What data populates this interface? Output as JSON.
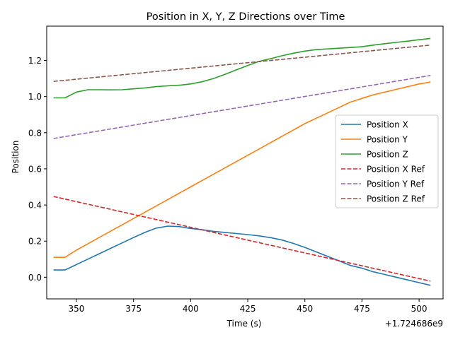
{
  "chart_data": {
    "type": "line",
    "title": "Position in X, Y, Z Directions over Time",
    "xlabel": "Time (s)",
    "ylabel": "Position",
    "x_offset_label": "+1.724686e9",
    "xlim": [
      337,
      510.5
    ],
    "ylim": [
      -0.12,
      1.39
    ],
    "xticks": [
      350,
      375,
      400,
      425,
      450,
      475,
      500
    ],
    "xtick_labels": [
      "350",
      "375",
      "400",
      "425",
      "450",
      "475",
      "500"
    ],
    "yticks": [
      0.0,
      0.2,
      0.4,
      0.6,
      0.8,
      1.0,
      1.2
    ],
    "ytick_labels": [
      "0.0",
      "0.2",
      "0.4",
      "0.6",
      "0.8",
      "1.0",
      "1.2"
    ],
    "grid": false,
    "legend_position": "center-right",
    "series": [
      {
        "name": "Position X",
        "color": "#1f77b4",
        "style": "solid",
        "x": [
          340,
          343,
          345,
          350,
          355,
          360,
          365,
          370,
          375,
          380,
          385,
          390,
          395,
          400,
          405,
          410,
          415,
          420,
          425,
          430,
          435,
          440,
          445,
          450,
          455,
          460,
          465,
          470,
          475,
          480,
          485,
          490,
          495,
          500,
          505
        ],
        "y": [
          0.04,
          0.04,
          0.04,
          0.07,
          0.1,
          0.13,
          0.16,
          0.19,
          0.22,
          0.248,
          0.272,
          0.283,
          0.28,
          0.27,
          0.263,
          0.254,
          0.248,
          0.242,
          0.236,
          0.229,
          0.219,
          0.206,
          0.187,
          0.165,
          0.14,
          0.115,
          0.09,
          0.065,
          0.05,
          0.03,
          0.015,
          0.0,
          -0.015,
          -0.03,
          -0.045
        ]
      },
      {
        "name": "Position Y",
        "color": "#ff7f0e",
        "style": "solid",
        "x": [
          340,
          343,
          345,
          350,
          360,
          370,
          380,
          390,
          400,
          410,
          420,
          430,
          440,
          450,
          460,
          470,
          475,
          480,
          490,
          500,
          505
        ],
        "y": [
          0.11,
          0.11,
          0.11,
          0.15,
          0.22,
          0.29,
          0.36,
          0.43,
          0.5,
          0.57,
          0.64,
          0.71,
          0.78,
          0.85,
          0.91,
          0.97,
          0.99,
          1.01,
          1.04,
          1.07,
          1.08
        ]
      },
      {
        "name": "Position Z",
        "color": "#2ca02c",
        "style": "solid",
        "x": [
          340,
          343,
          345,
          350,
          355,
          360,
          365,
          370,
          375,
          380,
          385,
          390,
          395,
          400,
          405,
          410,
          415,
          420,
          425,
          430,
          435,
          440,
          445,
          450,
          455,
          460,
          465,
          470,
          475,
          480,
          485,
          490,
          495,
          500,
          505
        ],
        "y": [
          0.993,
          0.993,
          0.993,
          1.025,
          1.038,
          1.038,
          1.037,
          1.038,
          1.043,
          1.048,
          1.055,
          1.06,
          1.063,
          1.07,
          1.082,
          1.1,
          1.123,
          1.148,
          1.172,
          1.195,
          1.21,
          1.226,
          1.24,
          1.252,
          1.26,
          1.264,
          1.268,
          1.272,
          1.276,
          1.285,
          1.293,
          1.3,
          1.307,
          1.315,
          1.322
        ]
      },
      {
        "name": "Position X Ref",
        "color": "#d62728",
        "style": "dashed",
        "x": [
          340,
          505
        ],
        "y": [
          0.447,
          -0.022
        ]
      },
      {
        "name": "Position Y Ref",
        "color": "#9467bd",
        "style": "dashed",
        "x": [
          340,
          505
        ],
        "y": [
          0.768,
          1.117
        ]
      },
      {
        "name": "Position Z Ref",
        "color": "#8c564b",
        "style": "dashed",
        "x": [
          340,
          505
        ],
        "y": [
          1.084,
          1.285
        ]
      }
    ]
  }
}
